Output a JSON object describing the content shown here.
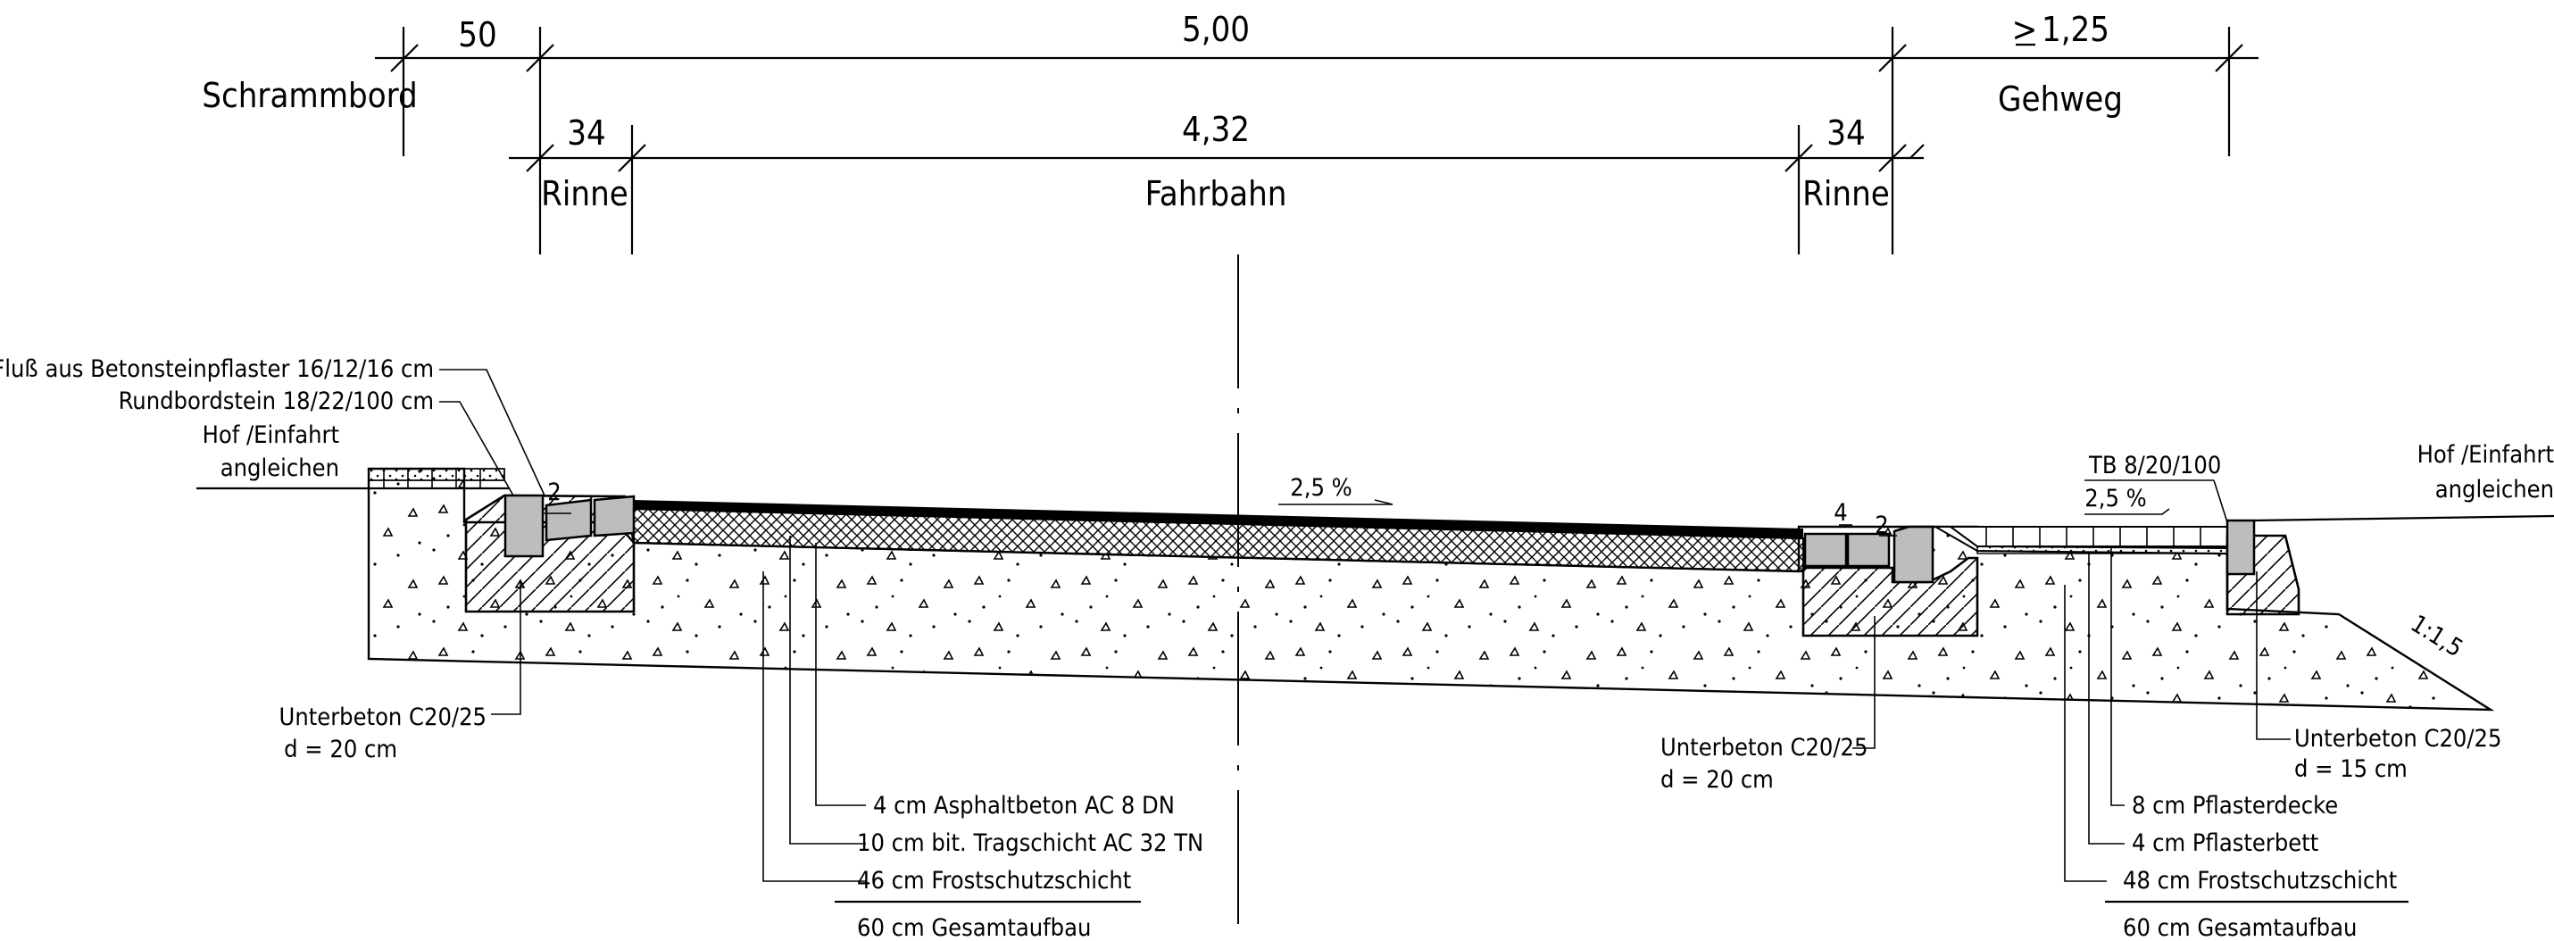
{
  "dimensions": {
    "schrammbord_width": "50",
    "total_width": "5,00",
    "gehweg_width": "1,25",
    "gehweg_prefix": ">",
    "rinne_left_width": "34",
    "fahrbahn_width": "4,32",
    "rinne_right_width": "34"
  },
  "zones": {
    "schrammbord": "Schrammbord",
    "gehweg": "Gehweg",
    "rinne_left": "Rinne",
    "fahrbahn": "Fahrbahn",
    "rinne_right": "Rinne"
  },
  "left_annotations": {
    "fluss": "Fluß aus Betonsteinpflaster 16/12/16 cm",
    "bordstein": "Rundbordstein 18/22/100 cm",
    "hof_line1": "Hof /Einfahrt",
    "hof_line2": "angleichen",
    "gap_small": "2",
    "unterbeton_line1": "Unterbeton C20/25",
    "unterbeton_line2": "d = 20 cm"
  },
  "road_slope": "2,5 %",
  "road_layers": {
    "asphalt": "4 cm Asphaltbeton AC 8 DN",
    "tragschicht": "10 cm bit. Tragschicht AC 32 TN",
    "frostschutz": "46 cm Frostschutzschicht",
    "total": "60 cm Gesamtaufbau"
  },
  "middle_annotations": {
    "unterbeton_line1": "Unterbeton C20/25",
    "unterbeton_line2": "d = 20 cm",
    "gap_4": "4",
    "gap_2": "2"
  },
  "right_annotations": {
    "tb": "TB 8/20/100",
    "sidewalk_slope": "2,5 %",
    "hof_line1": "Hof /Einfahrt",
    "hof_line2": "angleichen",
    "embankment": "1:1,5",
    "unterbeton_line1": "Unterbeton C20/25",
    "unterbeton_line2": "d = 15 cm"
  },
  "sidewalk_layers": {
    "pflasterdecke": "8 cm Pflasterdecke",
    "pflasterbett": "4 cm Pflasterbett",
    "frostschutz": "48 cm Frostschutzschicht",
    "total": "60 cm Gesamtaufbau"
  }
}
